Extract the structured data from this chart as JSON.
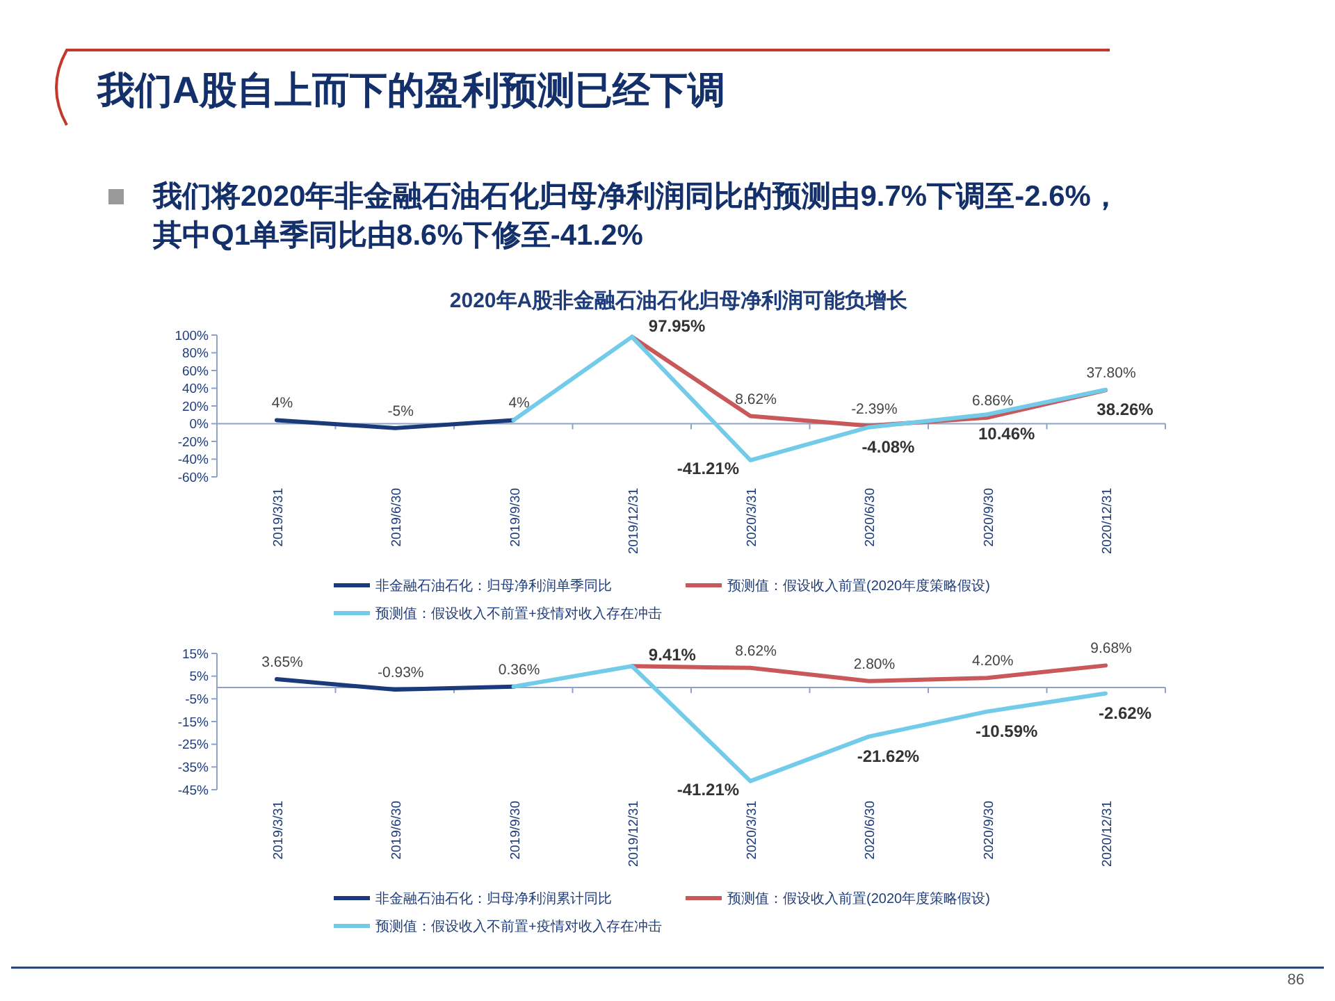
{
  "chart_data": [
    {
      "type": "line",
      "title": "我们A股自上而下的盈利预测已经下调",
      "subtitle": "我们将2020年非金融石油石化归母净利润同比的预测由9.7%下调至-2.6%，其中Q1单季同比由8.6%下修至-41.2%",
      "annotations": [
        "2020年A股非金融石油石化归母净利润可能负增长"
      ],
      "categories": [
        "2019/3/31",
        "2019/6/30",
        "2019/9/30",
        "2019/12/31",
        "2020/3/31",
        "2020/6/30",
        "2020/9/30",
        "2020/12/31"
      ],
      "ylim": [
        -60,
        100
      ],
      "yticks": [
        {
          "value": -60,
          "label": "-60%"
        },
        {
          "value": -40,
          "label": "-40%"
        },
        {
          "value": -20,
          "label": "-20%"
        },
        {
          "value": 0,
          "label": "0%"
        },
        {
          "value": 20,
          "label": "20%"
        },
        {
          "value": 40,
          "label": "40%"
        },
        {
          "value": 60,
          "label": "60%"
        },
        {
          "value": 80,
          "label": "80%"
        },
        {
          "value": 100,
          "label": "100%"
        }
      ],
      "legend": "bottom",
      "ref_lines": [
        {
          "axis": "y",
          "value": 0,
          "color": "#8ea2c8"
        }
      ],
      "series": [
        {
          "name": "非金融石油石化：归母净利润单季同比",
          "color": "#1b3a7a",
          "values": [
            4,
            -5,
            4,
            null,
            null,
            null,
            null,
            null
          ],
          "value_labels": [
            "4%",
            "-5%",
            "4%",
            null,
            null,
            null,
            null,
            null
          ]
        },
        {
          "name": "预测值：假设收入前置(2020年度策略假设)",
          "color": "#c9585a",
          "values": [
            null,
            null,
            null,
            97.95,
            8.62,
            -2.39,
            6.86,
            37.8
          ],
          "value_labels": [
            null,
            null,
            null,
            null,
            "8.62%",
            "-2.39%",
            "6.86%",
            "37.80%"
          ]
        },
        {
          "name": "预测值：假设收入不前置+疫情对收入存在冲击",
          "color": "#72cbe8",
          "values": [
            null,
            null,
            4,
            97.95,
            -41.21,
            -4.08,
            10.46,
            38.26
          ],
          "value_labels": [
            null,
            null,
            null,
            "97.95%",
            "-41.21%",
            "-4.08%",
            "10.46%",
            "38.26%"
          ]
        }
      ]
    },
    {
      "type": "line",
      "annotations": [
        "86"
      ],
      "categories": [
        "2019/3/31",
        "2019/6/30",
        "2019/9/30",
        "2019/12/31",
        "2020/3/31",
        "2020/6/30",
        "2020/9/30",
        "2020/12/31"
      ],
      "ylim": [
        -45,
        15
      ],
      "yticks": [
        {
          "value": -45,
          "label": "-45%"
        },
        {
          "value": -35,
          "label": "-35%"
        },
        {
          "value": -25,
          "label": "-25%"
        },
        {
          "value": -15,
          "label": "-15%"
        },
        {
          "value": -5,
          "label": "-5%"
        },
        {
          "value": 5,
          "label": "5%"
        },
        {
          "value": 15,
          "label": "15%"
        }
      ],
      "legend": "bottom",
      "ref_lines": [
        {
          "axis": "y",
          "value": 0,
          "color": "#8ea2c8"
        }
      ],
      "series": [
        {
          "name": "非金融石油石化：归母净利润累计同比",
          "color": "#1b3a7a",
          "values": [
            3.65,
            -0.93,
            0.36,
            null,
            null,
            null,
            null,
            null
          ],
          "value_labels": [
            "3.65%",
            "-0.93%",
            "0.36%",
            null,
            null,
            null,
            null,
            null
          ]
        },
        {
          "name": "预测值：假设收入前置(2020年度策略假设)",
          "color": "#c9585a",
          "values": [
            null,
            null,
            null,
            9.41,
            8.62,
            2.8,
            4.2,
            9.68
          ],
          "value_labels": [
            null,
            null,
            null,
            null,
            "8.62%",
            "2.80%",
            "4.20%",
            "9.68%"
          ]
        },
        {
          "name": "预测值：假设收入不前置+疫情对收入存在冲击",
          "color": "#72cbe8",
          "values": [
            null,
            null,
            0.36,
            9.41,
            -41.21,
            -21.62,
            -10.59,
            -2.62
          ],
          "value_labels": [
            null,
            null,
            null,
            "9.41%",
            "-41.21%",
            "-21.62%",
            "-10.59%",
            "-2.62%"
          ]
        }
      ]
    }
  ]
}
